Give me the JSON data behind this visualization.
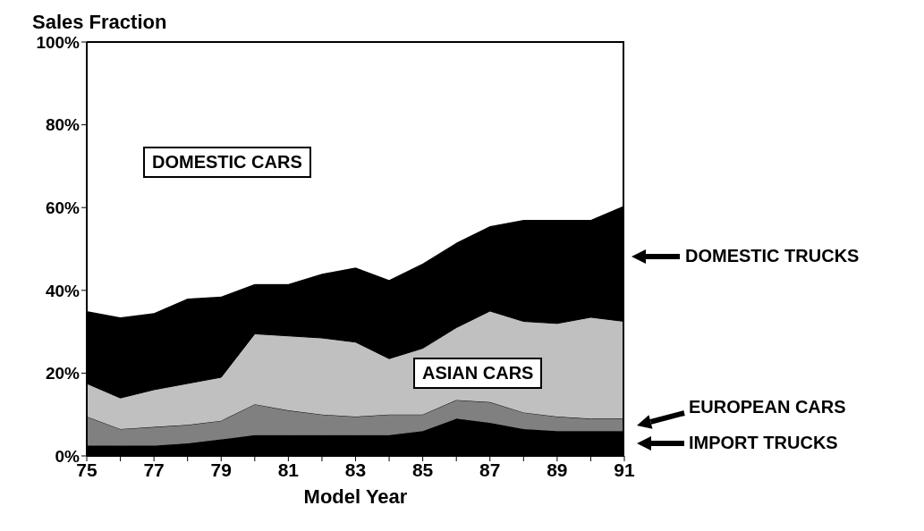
{
  "chart_data": {
    "type": "area",
    "stacked": true,
    "title": "Sales Fraction",
    "xlabel": "Model Year",
    "x": [
      75,
      76,
      77,
      78,
      79,
      80,
      81,
      82,
      83,
      84,
      85,
      86,
      87,
      88,
      89,
      90,
      91
    ],
    "xlim": [
      75,
      91
    ],
    "xticks": [
      75,
      {
        "value": 76,
        "label": null
      },
      77,
      {
        "value": 78,
        "label": null
      },
      79,
      {
        "value": 80,
        "label": null
      },
      81,
      {
        "value": 82,
        "label": null
      },
      83,
      {
        "value": 84,
        "label": null
      },
      85,
      {
        "value": 86,
        "label": null
      },
      87,
      {
        "value": 88,
        "label": null
      },
      89,
      {
        "value": 90,
        "label": null
      },
      91
    ],
    "ylim": [
      0,
      100
    ],
    "yticks": [
      {
        "value": 0,
        "label": "0%"
      },
      {
        "value": 20,
        "label": "20%"
      },
      {
        "value": 40,
        "label": "40%"
      },
      {
        "value": 60,
        "label": "60%"
      },
      {
        "value": 80,
        "label": "80%"
      },
      {
        "value": 100,
        "label": "100%"
      }
    ],
    "grid": false,
    "legend": "right",
    "series": [
      {
        "name": "IMPORT TRUCKS",
        "color": "#000000",
        "values": [
          2.5,
          2.5,
          2.5,
          3,
          4,
          5,
          5,
          5,
          5,
          5,
          6,
          9,
          8,
          6.5,
          6,
          6,
          6
        ]
      },
      {
        "name": "EUROPEAN CARS",
        "color": "#808080",
        "values": [
          7,
          4,
          4.5,
          4.5,
          4.5,
          7.5,
          6,
          5,
          4.5,
          5,
          4,
          4.5,
          5,
          4,
          3.5,
          3,
          3
        ]
      },
      {
        "name": "ASIAN CARS",
        "color": "#c0c0c0",
        "values": [
          8,
          7.5,
          9,
          10,
          10.5,
          17,
          18,
          18.5,
          18,
          13.5,
          16,
          17.5,
          22,
          22,
          22.5,
          24.5,
          23.5
        ]
      },
      {
        "name": "DOMESTIC TRUCKS",
        "color": "#000000",
        "values": [
          17.5,
          19.5,
          18.5,
          20.5,
          19.5,
          12,
          12.5,
          15.5,
          18,
          19,
          20.5,
          20.5,
          20.5,
          24.5,
          25,
          23.5,
          28
        ]
      },
      {
        "name": "DOMESTIC CARS",
        "color": "#ffffff",
        "values": [
          65,
          66.5,
          65.5,
          62,
          61.5,
          58.5,
          58.5,
          56,
          54.5,
          57.5,
          53.5,
          48.5,
          44.5,
          43,
          43,
          43,
          39.5
        ]
      }
    ]
  }
}
